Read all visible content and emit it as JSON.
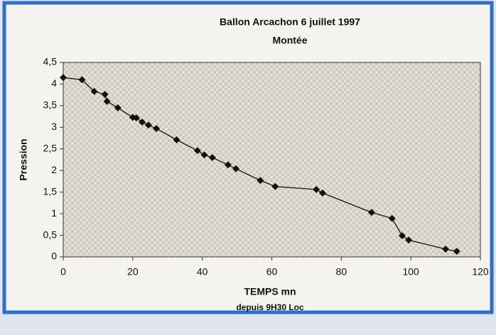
{
  "chart_data": {
    "type": "line",
    "title": "Ballon Arcachon   6 juillet 1997",
    "subtitle": "Montée",
    "y_label": "Pression",
    "x_label": "TEMPS mn",
    "x_sublabel": "depuis 9H30 Loc",
    "x": [
      0,
      5.4,
      8.9,
      12,
      12.6,
      15.7,
      20,
      21,
      22.7,
      24.5,
      26.8,
      32.6,
      38.6,
      40.6,
      42.9,
      47.4,
      49.7,
      56.7,
      61,
      72.8,
      74.6,
      88.7,
      94.6,
      97.5,
      99.4,
      110,
      113.2
    ],
    "series": [
      {
        "name": "Pression",
        "color": "#111111",
        "values": [
          4.15,
          4.1,
          3.83,
          3.76,
          3.6,
          3.45,
          3.23,
          3.22,
          3.12,
          3.05,
          2.97,
          2.71,
          2.46,
          2.36,
          2.3,
          2.13,
          2.04,
          1.77,
          1.63,
          1.56,
          1.48,
          1.03,
          0.89,
          0.49,
          0.39,
          0.18,
          0.13
        ]
      }
    ],
    "xlim": [
      0,
      120
    ],
    "xticks": [
      0,
      20,
      40,
      60,
      80,
      100,
      120
    ],
    "ylim": [
      0,
      4.5
    ],
    "yticks": [
      0,
      {
        "value": 0.5,
        "label": "0,5"
      },
      1,
      {
        "value": 1.5,
        "label": "1,5"
      },
      2,
      {
        "value": 2.5,
        "label": "2,5"
      },
      3,
      {
        "value": 3.5,
        "label": "3,5"
      },
      4,
      {
        "value": 4.5,
        "label": "4,5"
      }
    ],
    "grid": false
  }
}
